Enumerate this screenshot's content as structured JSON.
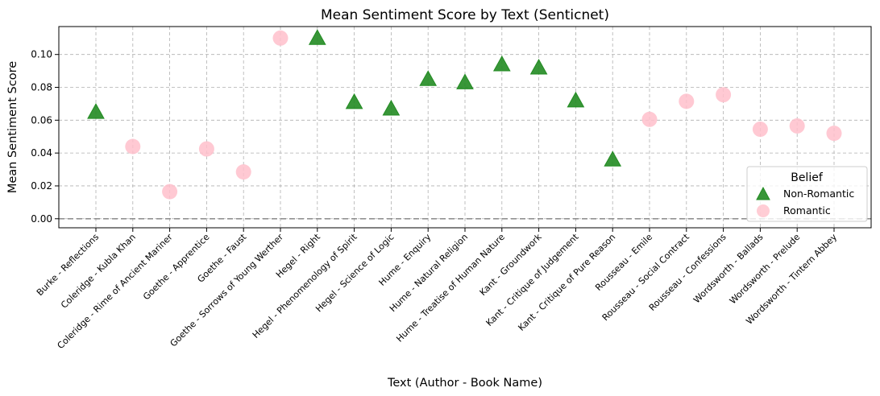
{
  "chart_data": {
    "type": "scatter",
    "title": "Mean Sentiment Score by Text (Senticnet)",
    "xlabel": "Text (Author - Book Name)",
    "ylabel": "Mean Sentiment Score",
    "ylim": [
      -0.0055,
      0.117
    ],
    "yticks": [
      0.0,
      0.02,
      0.04,
      0.06,
      0.08,
      0.1
    ],
    "ytick_labels": [
      "0.00",
      "0.02",
      "0.04",
      "0.06",
      "0.08",
      "0.10"
    ],
    "grid": true,
    "reference_line": 0.0,
    "legend": {
      "title": "Belief",
      "placement": "lower-right"
    },
    "categories": [
      "Burke - Reflections",
      "Coleridge - Kubla Khan",
      "Coleridge - Rime of Ancient Mariner",
      "Goethe - Apprentice",
      "Goethe - Faust",
      "Goethe - Sorrows of Young Werther",
      "Hegel - Right",
      "Hegel - Phenomenology of Spirit",
      "Hegel - Science of Logic",
      "Hume - Enquiry",
      "Hume - Natural Religion",
      "Hume - Treatise of Human Nature",
      "Kant - Groundwork",
      "Kant - Critique of Judgement",
      "Kant - Critique of Pure Reason",
      "Rousseau - Emile",
      "Rousseau - Social Contract",
      "Rousseau - Confessions",
      "Wordsworth - Ballads",
      "Wordsworth - Prelude",
      "Wordsworth - Tintern Abbey"
    ],
    "series": [
      {
        "name": "Non-Romantic",
        "marker": "triangle",
        "color": "#228B22",
        "points": [
          {
            "x": "Burke - Reflections",
            "y": 0.065
          },
          {
            "x": "Hegel - Right",
            "y": 0.11
          },
          {
            "x": "Hegel - Phenomenology of Spirit",
            "y": 0.071
          },
          {
            "x": "Hegel - Science of Logic",
            "y": 0.067
          },
          {
            "x": "Hume - Enquiry",
            "y": 0.085
          },
          {
            "x": "Hume - Natural Religion",
            "y": 0.083
          },
          {
            "x": "Hume - Treatise of Human Nature",
            "y": 0.094
          },
          {
            "x": "Kant - Groundwork",
            "y": 0.092
          },
          {
            "x": "Kant - Critique of Judgement",
            "y": 0.072
          },
          {
            "x": "Kant - Critique of Pure Reason",
            "y": 0.036
          }
        ]
      },
      {
        "name": "Romantic",
        "marker": "circle",
        "color": "#FFC0CB",
        "points": [
          {
            "x": "Coleridge - Kubla Khan",
            "y": 0.044
          },
          {
            "x": "Coleridge - Rime of Ancient Mariner",
            "y": 0.0165
          },
          {
            "x": "Goethe - Apprentice",
            "y": 0.0425
          },
          {
            "x": "Goethe - Faust",
            "y": 0.0285
          },
          {
            "x": "Goethe - Sorrows of Young Werther",
            "y": 0.11
          },
          {
            "x": "Rousseau - Emile",
            "y": 0.0605
          },
          {
            "x": "Rousseau - Social Contract",
            "y": 0.0715
          },
          {
            "x": "Rousseau - Confessions",
            "y": 0.0755
          },
          {
            "x": "Wordsworth - Ballads",
            "y": 0.0545
          },
          {
            "x": "Wordsworth - Prelude",
            "y": 0.0565
          },
          {
            "x": "Wordsworth - Tintern Abbey",
            "y": 0.052
          }
        ]
      }
    ]
  }
}
